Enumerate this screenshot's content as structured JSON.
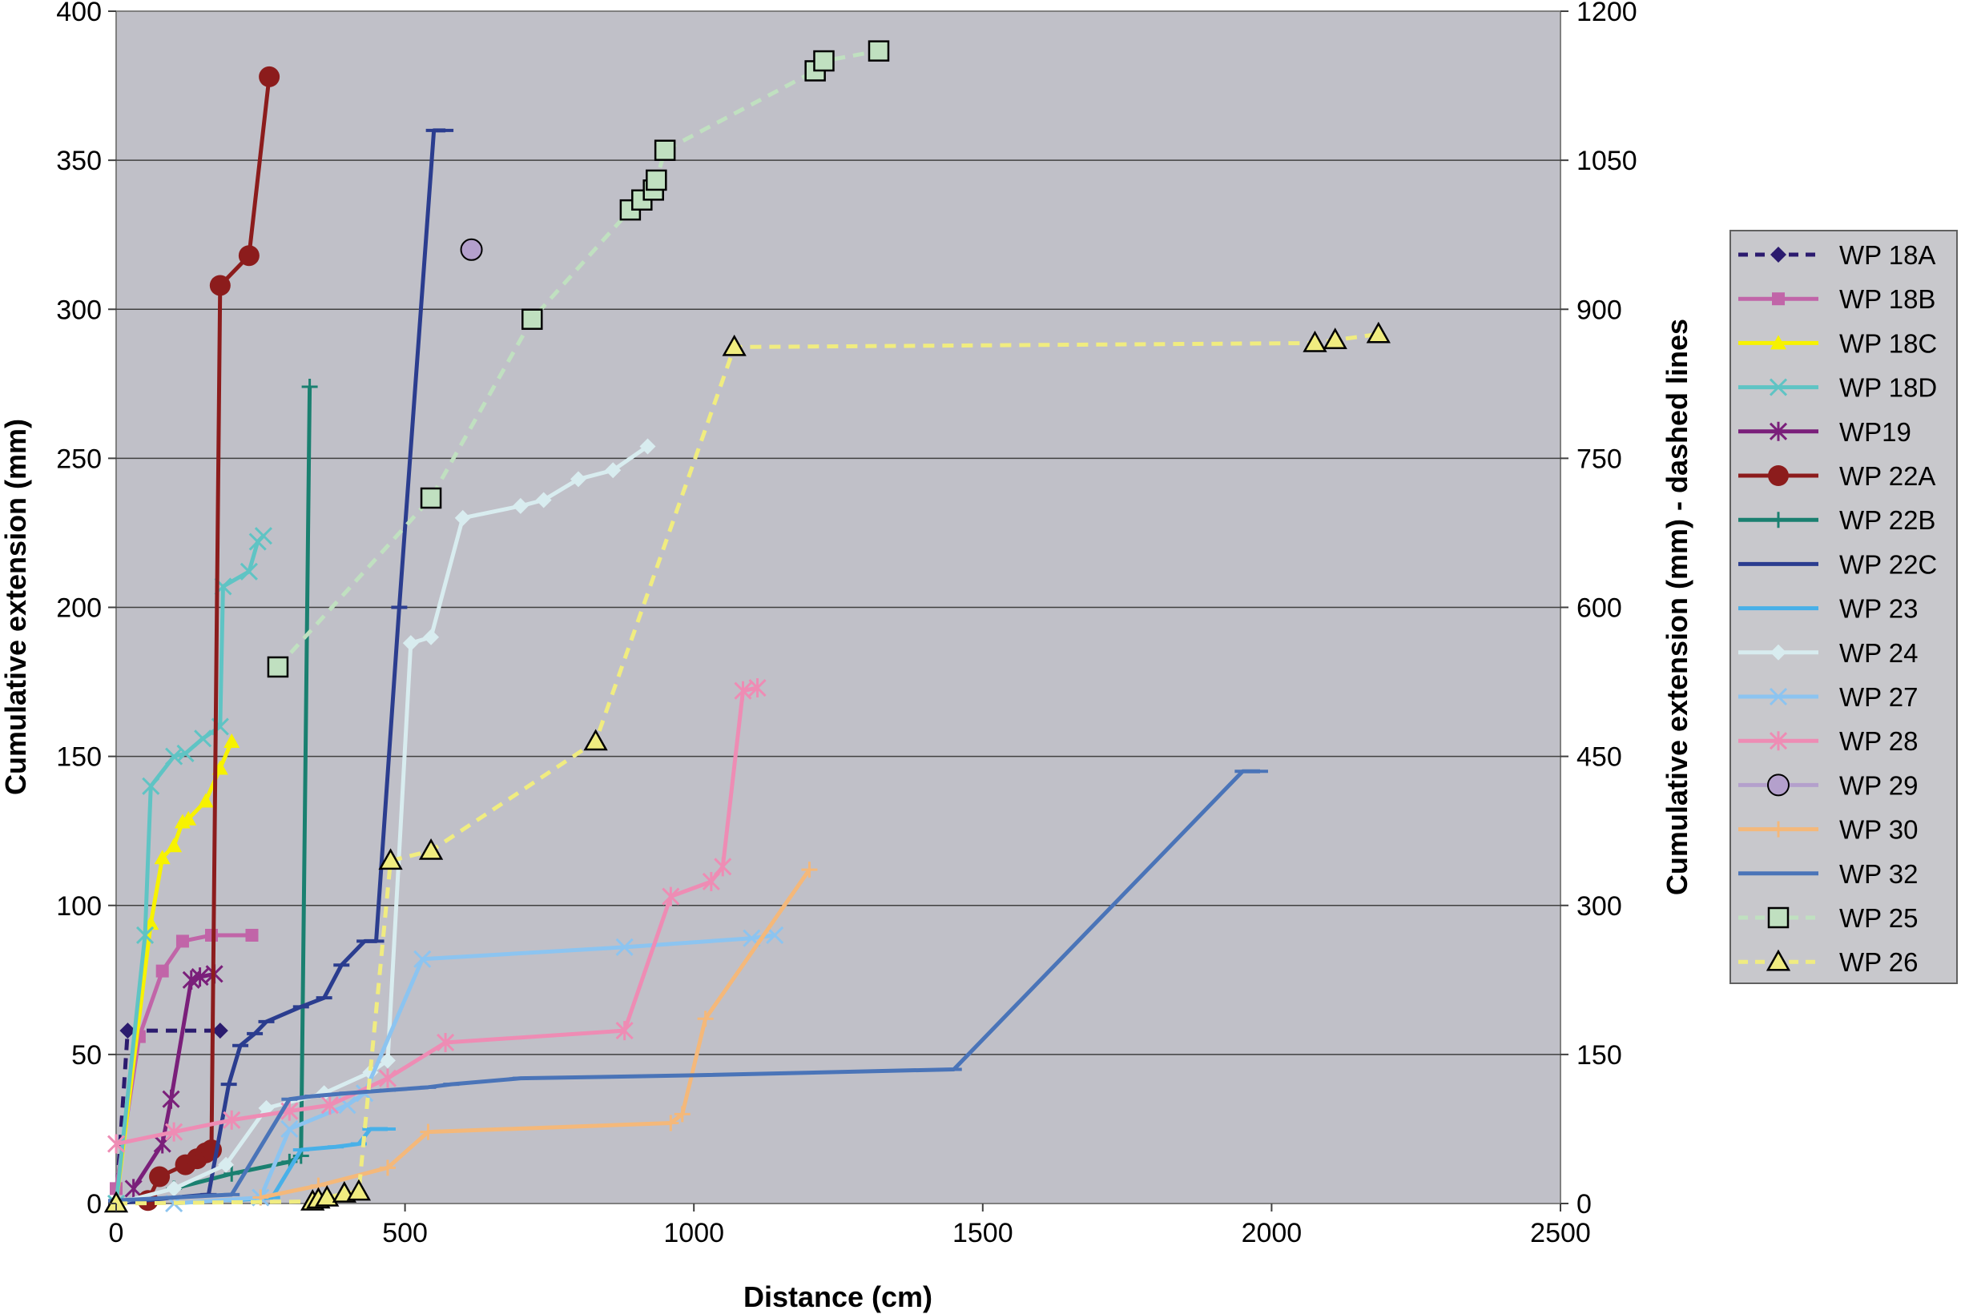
{
  "chart_data": {
    "type": "line",
    "xlabel": "Distance (cm)",
    "ylabel": "Cumulative extension (mm)",
    "y2label": "Cumulative extension (mm) - dashed lines",
    "xlim": [
      0,
      2500
    ],
    "ylim": [
      0,
      400
    ],
    "y2lim": [
      0,
      1200
    ],
    "x_ticks": [
      0,
      500,
      1000,
      1500,
      2000,
      2500
    ],
    "y_ticks": [
      0,
      50,
      100,
      150,
      200,
      250,
      300,
      350,
      400
    ],
    "y2_ticks": [
      0,
      150,
      300,
      450,
      600,
      750,
      900,
      1050,
      1200
    ],
    "grid": "horizontal",
    "legend_position": "right",
    "plot_background": "#c0c0c8",
    "series": [
      {
        "name": "WP 18A",
        "color": "#2b1b6e",
        "marker": "diamond",
        "axis": "left",
        "dashed": true,
        "points": [
          [
            0,
            0
          ],
          [
            20,
            58
          ],
          [
            180,
            58
          ]
        ]
      },
      {
        "name": "WP 18B",
        "color": "#c165a8",
        "marker": "square",
        "axis": "left",
        "points": [
          [
            0,
            5
          ],
          [
            40,
            56
          ],
          [
            80,
            78
          ],
          [
            115,
            88
          ],
          [
            165,
            90
          ],
          [
            235,
            90
          ]
        ]
      },
      {
        "name": "WP 18C",
        "color": "#f7f200",
        "marker": "triangle",
        "axis": "left",
        "points": [
          [
            0,
            0
          ],
          [
            60,
            94
          ],
          [
            80,
            116
          ],
          [
            100,
            120
          ],
          [
            115,
            128
          ],
          [
            125,
            129
          ],
          [
            155,
            135
          ],
          [
            180,
            146
          ],
          [
            200,
            155
          ]
        ]
      },
      {
        "name": "WP 18D",
        "color": "#5fc4c4",
        "marker": "x",
        "axis": "left",
        "points": [
          [
            0,
            0
          ],
          [
            50,
            90
          ],
          [
            60,
            140
          ],
          [
            100,
            150
          ],
          [
            120,
            151
          ],
          [
            150,
            156
          ],
          [
            180,
            160
          ],
          [
            185,
            207
          ],
          [
            230,
            212
          ],
          [
            245,
            222
          ],
          [
            255,
            224
          ]
        ]
      },
      {
        "name": "WP19",
        "color": "#7a1f7a",
        "marker": "asterisk",
        "axis": "left",
        "points": [
          [
            30,
            5
          ],
          [
            80,
            20
          ],
          [
            95,
            35
          ],
          [
            130,
            75
          ],
          [
            145,
            76
          ],
          [
            170,
            77
          ]
        ]
      },
      {
        "name": "WP 22A",
        "color": "#8c1c1c",
        "marker": "circle",
        "axis": "left",
        "points": [
          [
            55,
            1
          ],
          [
            75,
            9
          ],
          [
            120,
            13
          ],
          [
            140,
            15
          ],
          [
            155,
            17
          ],
          [
            165,
            18
          ],
          [
            180,
            308
          ],
          [
            230,
            318
          ],
          [
            265,
            378
          ]
        ]
      },
      {
        "name": "WP 22B",
        "color": "#1a8070",
        "marker": "plus",
        "axis": "left",
        "points": [
          [
            100,
            5
          ],
          [
            200,
            10
          ],
          [
            300,
            14
          ],
          [
            320,
            16
          ],
          [
            335,
            274
          ]
        ]
      },
      {
        "name": "WP 22C",
        "color": "#2b3d8f",
        "marker": "dash",
        "axis": "left",
        "points": [
          [
            0,
            0
          ],
          [
            100,
            2
          ],
          [
            160,
            3
          ],
          [
            195,
            40
          ],
          [
            215,
            53
          ],
          [
            240,
            57
          ],
          [
            260,
            61
          ],
          [
            320,
            66
          ],
          [
            360,
            69
          ],
          [
            390,
            80
          ],
          [
            430,
            88
          ],
          [
            450,
            88
          ],
          [
            490,
            200
          ],
          [
            550,
            360
          ],
          [
            570,
            360
          ]
        ]
      },
      {
        "name": "WP 23",
        "color": "#48b0e8",
        "marker": "dash",
        "axis": "left",
        "points": [
          [
            200,
            1
          ],
          [
            270,
            2
          ],
          [
            320,
            18
          ],
          [
            380,
            19
          ],
          [
            420,
            20
          ],
          [
            440,
            25
          ],
          [
            470,
            25
          ]
        ]
      },
      {
        "name": "WP 24",
        "color": "#d8ecef",
        "marker": "diamond",
        "axis": "left",
        "points": [
          [
            0,
            0
          ],
          [
            100,
            5
          ],
          [
            190,
            13
          ],
          [
            260,
            32
          ],
          [
            360,
            37
          ],
          [
            440,
            44
          ],
          [
            470,
            48
          ],
          [
            510,
            188
          ],
          [
            545,
            190
          ],
          [
            600,
            230
          ],
          [
            700,
            234
          ],
          [
            740,
            236
          ],
          [
            800,
            243
          ],
          [
            860,
            246
          ],
          [
            920,
            254
          ]
        ]
      },
      {
        "name": "WP 27",
        "color": "#8cc4f0",
        "marker": "x",
        "axis": "left",
        "points": [
          [
            100,
            0
          ],
          [
            250,
            2
          ],
          [
            300,
            25
          ],
          [
            400,
            33
          ],
          [
            430,
            37
          ],
          [
            530,
            82
          ],
          [
            880,
            86
          ],
          [
            1100,
            89
          ],
          [
            1140,
            90
          ]
        ]
      },
      {
        "name": "WP 28",
        "color": "#ee8cb4",
        "marker": "asterisk",
        "axis": "left",
        "points": [
          [
            0,
            20
          ],
          [
            100,
            24
          ],
          [
            200,
            28
          ],
          [
            300,
            31
          ],
          [
            370,
            33
          ],
          [
            470,
            42
          ],
          [
            570,
            54
          ],
          [
            880,
            58
          ],
          [
            960,
            103
          ],
          [
            1030,
            108
          ],
          [
            1050,
            113
          ],
          [
            1085,
            172
          ],
          [
            1110,
            173
          ]
        ]
      },
      {
        "name": "WP 29",
        "color": "#b4a0cc",
        "marker": "circle-open",
        "axis": "left",
        "points": [
          [
            615,
            320
          ]
        ]
      },
      {
        "name": "WP 30",
        "color": "#f4b87a",
        "marker": "plus",
        "axis": "left",
        "points": [
          [
            250,
            2
          ],
          [
            350,
            6
          ],
          [
            470,
            12
          ],
          [
            540,
            24
          ],
          [
            960,
            27
          ],
          [
            980,
            30
          ],
          [
            1020,
            62
          ],
          [
            1200,
            112
          ]
        ]
      },
      {
        "name": "WP 32",
        "color": "#4a74b8",
        "marker": "dash",
        "axis": "left",
        "points": [
          [
            0,
            1
          ],
          [
            200,
            3
          ],
          [
            300,
            35
          ],
          [
            340,
            36
          ],
          [
            400,
            37
          ],
          [
            470,
            38
          ],
          [
            540,
            39
          ],
          [
            580,
            40
          ],
          [
            700,
            42
          ],
          [
            1000,
            43
          ],
          [
            1450,
            45
          ],
          [
            1950,
            145
          ],
          [
            1980,
            145
          ]
        ]
      },
      {
        "name": "WP 25",
        "color": "#c0e0c0",
        "marker": "square-open",
        "axis": "right",
        "dashed": true,
        "points": [
          [
            280,
            540
          ],
          [
            545,
            710
          ],
          [
            720,
            890
          ],
          [
            890,
            1000
          ],
          [
            910,
            1010
          ],
          [
            930,
            1020
          ],
          [
            935,
            1030
          ],
          [
            950,
            1060
          ],
          [
            1210,
            1140
          ],
          [
            1225,
            1150
          ],
          [
            1320,
            1160
          ]
        ]
      },
      {
        "name": "WP 26",
        "color": "#f0ec80",
        "marker": "triangle-open",
        "axis": "right",
        "dashed": true,
        "points": [
          [
            0,
            0
          ],
          [
            340,
            2
          ],
          [
            350,
            4
          ],
          [
            365,
            6
          ],
          [
            395,
            10
          ],
          [
            420,
            12
          ],
          [
            475,
            345
          ],
          [
            545,
            355
          ],
          [
            830,
            465
          ],
          [
            1070,
            862
          ],
          [
            2075,
            866
          ],
          [
            2110,
            869
          ],
          [
            2185,
            875
          ]
        ]
      }
    ]
  }
}
